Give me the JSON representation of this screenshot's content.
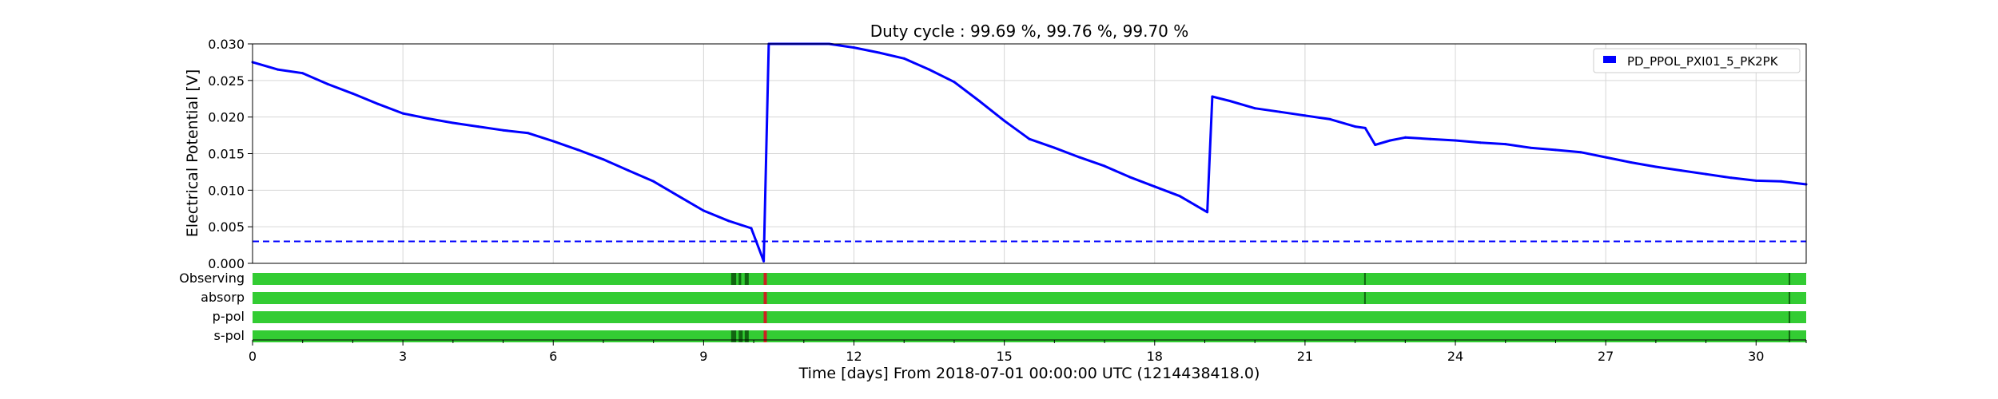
{
  "chart_data": {
    "type": "line",
    "title": "Duty cycle : 99.69 %, 99.76 %, 99.70 %",
    "xlabel": "Time [days] From 2018-07-01 00:00:00 UTC (1214438418.0)",
    "ylabel": "Electrical Potential [V]",
    "xlim": [
      0,
      31
    ],
    "ylim": [
      0,
      0.03
    ],
    "x_ticks": [
      0,
      3,
      6,
      9,
      12,
      15,
      18,
      21,
      24,
      27,
      30
    ],
    "x_tick_labels": [
      "0",
      "3",
      "6",
      "9",
      "12",
      "15",
      "18",
      "21",
      "24",
      "27",
      "30"
    ],
    "y_ticks": [
      0,
      0.005,
      0.01,
      0.015,
      0.02,
      0.025,
      0.03
    ],
    "y_tick_labels": [
      "0.000",
      "0.005",
      "0.010",
      "0.015",
      "0.020",
      "0.025",
      "0.030"
    ],
    "grid": true,
    "legend_position": "top-right",
    "series": [
      {
        "name": "PD_PPOL_PXI01_5_PK2PK",
        "color": "#0000ff",
        "x": [
          0,
          0.5,
          1,
          1.5,
          2,
          2.5,
          3,
          3.5,
          4,
          4.5,
          5,
          5.5,
          6,
          6.5,
          7,
          7.5,
          8,
          8.5,
          9,
          9.5,
          9.95,
          10.2,
          10.3,
          10.5,
          11,
          11.5,
          12,
          12.5,
          13,
          13.5,
          14,
          14.5,
          15,
          15.5,
          16,
          16.5,
          17,
          17.5,
          18,
          18.5,
          19.05,
          19.15,
          19.5,
          20,
          20.5,
          21,
          21.5,
          22,
          22.2,
          22.4,
          22.7,
          23,
          23.5,
          24,
          24.5,
          25,
          25.5,
          26,
          26.5,
          27,
          27.5,
          28,
          28.5,
          29,
          29.5,
          30,
          30.5,
          31
        ],
        "y": [
          0.0275,
          0.0265,
          0.026,
          0.0245,
          0.0232,
          0.0218,
          0.0205,
          0.0198,
          0.0192,
          0.0187,
          0.0182,
          0.0178,
          0.0167,
          0.0155,
          0.0142,
          0.0127,
          0.0112,
          0.0092,
          0.0072,
          0.0058,
          0.0048,
          0.0003,
          0.03,
          0.03,
          0.03,
          0.03,
          0.0295,
          0.0288,
          0.028,
          0.0265,
          0.0248,
          0.0222,
          0.0195,
          0.017,
          0.0158,
          0.0145,
          0.0133,
          0.0118,
          0.0105,
          0.0092,
          0.007,
          0.0228,
          0.0222,
          0.0212,
          0.0207,
          0.0202,
          0.0197,
          0.0187,
          0.0185,
          0.0162,
          0.0168,
          0.0172,
          0.017,
          0.0168,
          0.0165,
          0.0163,
          0.0158,
          0.0155,
          0.0152,
          0.0145,
          0.0138,
          0.0132,
          0.0127,
          0.0122,
          0.0117,
          0.0113,
          0.0112,
          0.0108
        ]
      }
    ],
    "threshold": {
      "y": 0.003,
      "color": "#0000ff",
      "style": "dashed"
    },
    "segment_rows": [
      {
        "label": "Observing",
        "on_color": "#33cc33",
        "gaps": [
          [
            9.55,
            9.65
          ],
          [
            9.7,
            9.75
          ],
          [
            9.82,
            9.9
          ],
          [
            10.2,
            10.26
          ],
          [
            22.18,
            22.2
          ],
          [
            30.65,
            30.68
          ]
        ]
      },
      {
        "label": "absorp",
        "on_color": "#33cc33",
        "gaps": [
          [
            10.2,
            10.26
          ],
          [
            22.18,
            22.2
          ],
          [
            30.65,
            30.68
          ]
        ]
      },
      {
        "label": "p-pol",
        "on_color": "#33cc33",
        "gaps": [
          [
            10.2,
            10.26
          ],
          [
            30.65,
            30.68
          ]
        ]
      },
      {
        "label": "s-pol",
        "on_color": "#33cc33",
        "gaps": [
          [
            9.55,
            9.65
          ],
          [
            9.7,
            9.78
          ],
          [
            9.82,
            9.9
          ],
          [
            10.2,
            10.26
          ],
          [
            30.65,
            30.68
          ]
        ]
      }
    ],
    "segment_off_marks": {
      "gap_color": "#116611",
      "highlight_color": "#cc2222",
      "highlight_at": 10.23
    }
  }
}
